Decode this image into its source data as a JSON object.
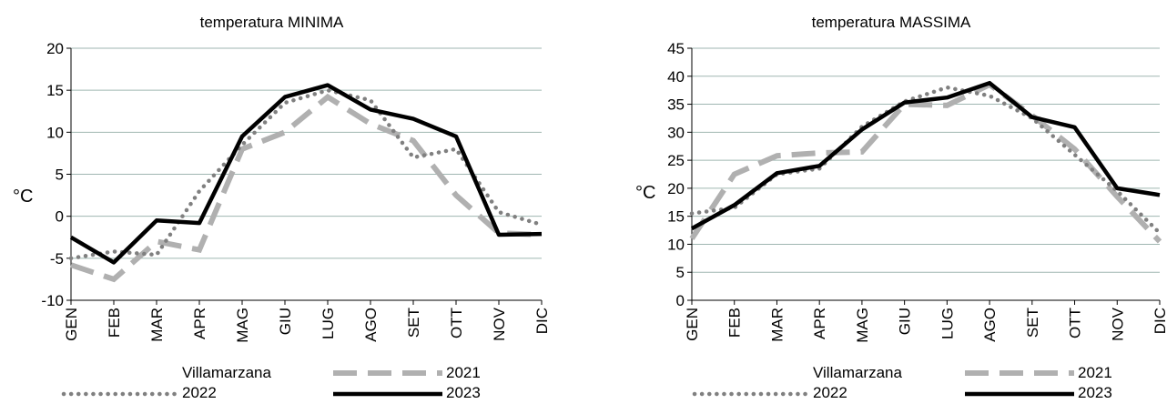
{
  "colors": {
    "2021": "#b0b0b0",
    "2022": "#808080",
    "2023": "#000000",
    "grid": "#9fb6b1",
    "axis": "#000000"
  },
  "chart_data": [
    {
      "type": "line",
      "title": "temperatura MINIMA",
      "xlabel": "",
      "ylabel": "°C",
      "ylim": [
        -10,
        20
      ],
      "yticks": [
        -10,
        -5,
        0,
        5,
        10,
        15,
        20
      ],
      "grid": true,
      "categories": [
        "GEN",
        "FEB",
        "MAR",
        "APR",
        "MAG",
        "GIU",
        "LUG",
        "AGO",
        "SET",
        "OTT",
        "NOV",
        "DIC"
      ],
      "legend_title": "Villamarzana",
      "legend_position": "bottom",
      "series": [
        {
          "name": "2021",
          "style": "dashed",
          "values": [
            -5.8,
            -7.5,
            -3.0,
            -4.0,
            8.0,
            10.0,
            14.2,
            11.0,
            9.0,
            2.5,
            -2.0,
            -2.2
          ]
        },
        {
          "name": "2022",
          "style": "dotted",
          "values": [
            -5.0,
            -4.2,
            -4.6,
            3.0,
            8.5,
            13.5,
            15.0,
            13.8,
            7.0,
            8.0,
            0.5,
            -1.0
          ]
        },
        {
          "name": "2023",
          "style": "solid",
          "values": [
            -2.5,
            -5.5,
            -0.5,
            -0.8,
            9.5,
            14.2,
            15.6,
            12.7,
            11.6,
            9.5,
            -2.2,
            -2.1
          ]
        }
      ]
    },
    {
      "type": "line",
      "title": "temperatura MASSIMA",
      "xlabel": "",
      "ylabel": "°C",
      "ylim": [
        0,
        45
      ],
      "yticks": [
        0,
        5,
        10,
        15,
        20,
        25,
        30,
        35,
        40,
        45
      ],
      "grid": true,
      "categories": [
        "GEN",
        "FEB",
        "MAR",
        "APR",
        "MAG",
        "GIU",
        "LUG",
        "AGO",
        "SET",
        "OTT",
        "NOV",
        "DIC"
      ],
      "legend_title": "Villamarzana",
      "legend_position": "bottom",
      "series": [
        {
          "name": "2021",
          "style": "dashed",
          "values": [
            11.0,
            22.5,
            25.8,
            26.3,
            26.5,
            35.0,
            34.8,
            38.5,
            33.0,
            27.0,
            18.5,
            10.5
          ]
        },
        {
          "name": "2022",
          "style": "dotted",
          "values": [
            15.5,
            16.5,
            22.5,
            23.5,
            31.0,
            35.5,
            38.0,
            36.5,
            32.5,
            26.0,
            19.5,
            12.0
          ]
        },
        {
          "name": "2023",
          "style": "solid",
          "values": [
            12.8,
            17.0,
            22.7,
            24.0,
            30.5,
            35.3,
            36.2,
            38.8,
            32.7,
            30.9,
            20.0,
            18.8
          ]
        }
      ]
    }
  ]
}
